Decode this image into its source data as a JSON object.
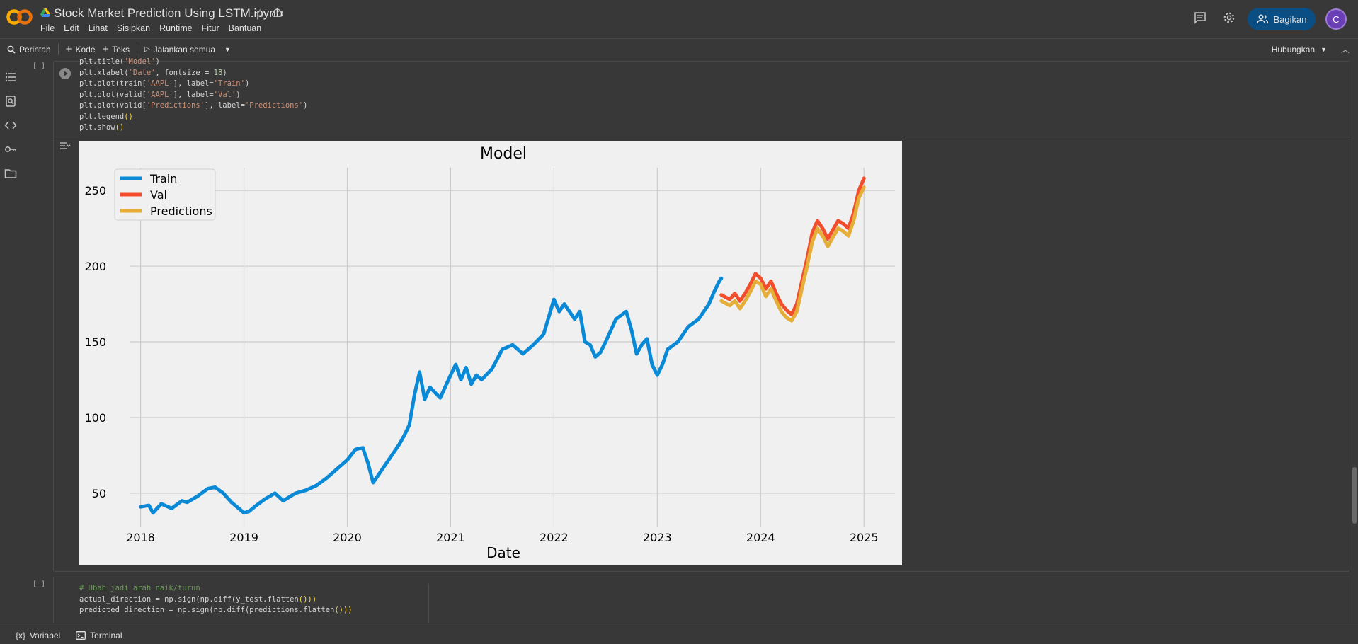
{
  "app": {
    "title": "Stock Market Prediction Using LSTM.ipynb",
    "menu": [
      "File",
      "Edit",
      "Lihat",
      "Sisipkan",
      "Runtime",
      "Fitur",
      "Bantuan"
    ],
    "share_label": "Bagikan",
    "avatar_initial": "C"
  },
  "toolbar": {
    "search_label": "Perintah",
    "add_code_label": "Kode",
    "add_text_label": "Teks",
    "run_all_label": "Jalankan semua",
    "connect_label": "Hubungkan"
  },
  "cell1": {
    "bracket": "[ ]",
    "lines": [
      {
        "pre": "plt.title(",
        "str": "'Model'",
        "post": ")"
      },
      {
        "pre": "plt.xlabel(",
        "str": "'Date'",
        "mid": ", fontsize = ",
        "num": "18",
        "post": ")"
      },
      {
        "pre": "plt.plot(train[",
        "str": "'AAPL'",
        "mid": "], label=",
        "str2": "'Train'",
        "post": ")"
      },
      {
        "pre": "plt.plot(valid[",
        "str": "'AAPL'",
        "mid": "], label=",
        "str2": "'Val'",
        "post": ")"
      },
      {
        "pre": "plt.plot(valid[",
        "str": "'Predictions'",
        "mid": "], label=",
        "str2": "'Predictions'",
        "post": ")"
      },
      {
        "pre": "plt.legend",
        "post": "()"
      },
      {
        "pre": "plt.show",
        "post": "()"
      }
    ]
  },
  "cell2": {
    "bracket": "[ ]",
    "comment": "# Ubah jadi arah naik/turun",
    "line1_a": "actual_direction = np.sign(np.diff(y_test.flatten",
    "line1_b": "()))",
    "line2_a": "predicted_direction = np.sign(np.diff(predictions.flatten",
    "line2_b": "()))"
  },
  "statusbar": {
    "variables_label": "Variabel",
    "terminal_label": "Terminal"
  },
  "chart_data": {
    "type": "line",
    "title": "Model",
    "xlabel": "Date",
    "ylabel": "",
    "x_ticks": [
      "2018",
      "2019",
      "2020",
      "2021",
      "2022",
      "2023",
      "2024",
      "2025"
    ],
    "y_ticks": [
      50,
      100,
      150,
      200,
      250
    ],
    "xlim": [
      2017.9,
      2025.3
    ],
    "ylim": [
      28,
      265
    ],
    "grid": true,
    "legend_position": "top-left",
    "colors": {
      "Train": "#0a8ad6",
      "Val": "#f24e2c",
      "Predictions": "#e5ae38"
    },
    "series": [
      {
        "name": "Train",
        "x": [
          2018.0,
          2018.08,
          2018.12,
          2018.2,
          2018.3,
          2018.4,
          2018.45,
          2018.55,
          2018.65,
          2018.72,
          2018.8,
          2018.88,
          2018.95,
          2019.0,
          2019.05,
          2019.12,
          2019.2,
          2019.3,
          2019.38,
          2019.45,
          2019.5,
          2019.6,
          2019.7,
          2019.8,
          2019.9,
          2020.0,
          2020.08,
          2020.15,
          2020.2,
          2020.25,
          2020.3,
          2020.4,
          2020.5,
          2020.55,
          2020.6,
          2020.65,
          2020.7,
          2020.75,
          2020.8,
          2020.9,
          2021.0,
          2021.05,
          2021.1,
          2021.15,
          2021.2,
          2021.25,
          2021.3,
          2021.4,
          2021.5,
          2021.6,
          2021.7,
          2021.8,
          2021.9,
          2022.0,
          2022.05,
          2022.1,
          2022.2,
          2022.25,
          2022.3,
          2022.35,
          2022.4,
          2022.45,
          2022.5,
          2022.6,
          2022.7,
          2022.75,
          2022.8,
          2022.85,
          2022.9,
          2022.95,
          2023.0,
          2023.05,
          2023.1,
          2023.2,
          2023.3,
          2023.4,
          2023.45,
          2023.5,
          2023.55,
          2023.6,
          2023.62
        ],
        "y": [
          41,
          42,
          37,
          43,
          40,
          45,
          44,
          48,
          53,
          54,
          50,
          44,
          40,
          37,
          38,
          42,
          46,
          50,
          45,
          48,
          50,
          52,
          55,
          60,
          66,
          72,
          79,
          80,
          70,
          57,
          62,
          72,
          82,
          88,
          95,
          115,
          130,
          112,
          120,
          113,
          128,
          135,
          125,
          133,
          122,
          128,
          125,
          132,
          145,
          148,
          142,
          148,
          155,
          178,
          170,
          175,
          165,
          170,
          150,
          148,
          140,
          143,
          150,
          165,
          170,
          158,
          142,
          148,
          152,
          135,
          128,
          135,
          145,
          150,
          160,
          165,
          170,
          175,
          183,
          190,
          192
        ]
      },
      {
        "name": "Val",
        "x": [
          2023.62,
          2023.7,
          2023.75,
          2023.8,
          2023.85,
          2023.9,
          2023.95,
          2024.0,
          2024.05,
          2024.1,
          2024.15,
          2024.2,
          2024.25,
          2024.3,
          2024.35,
          2024.4,
          2024.45,
          2024.5,
          2024.55,
          2024.6,
          2024.65,
          2024.7,
          2024.75,
          2024.8,
          2024.85,
          2024.9,
          2024.95,
          2025.0
        ],
        "y": [
          181,
          178,
          182,
          177,
          182,
          188,
          195,
          192,
          185,
          190,
          182,
          175,
          171,
          168,
          175,
          190,
          205,
          222,
          230,
          225,
          218,
          224,
          230,
          228,
          225,
          235,
          250,
          258
        ]
      },
      {
        "name": "Predictions",
        "x": [
          2023.62,
          2023.7,
          2023.75,
          2023.8,
          2023.85,
          2023.9,
          2023.95,
          2024.0,
          2024.05,
          2024.1,
          2024.15,
          2024.2,
          2024.25,
          2024.3,
          2024.35,
          2024.4,
          2024.45,
          2024.5,
          2024.55,
          2024.6,
          2024.65,
          2024.7,
          2024.75,
          2024.8,
          2024.85,
          2024.9,
          2024.95,
          2025.0
        ],
        "y": [
          177,
          174,
          177,
          172,
          177,
          183,
          190,
          188,
          180,
          185,
          177,
          170,
          166,
          164,
          170,
          185,
          200,
          216,
          225,
          220,
          213,
          219,
          225,
          223,
          220,
          230,
          245,
          252
        ]
      }
    ]
  }
}
